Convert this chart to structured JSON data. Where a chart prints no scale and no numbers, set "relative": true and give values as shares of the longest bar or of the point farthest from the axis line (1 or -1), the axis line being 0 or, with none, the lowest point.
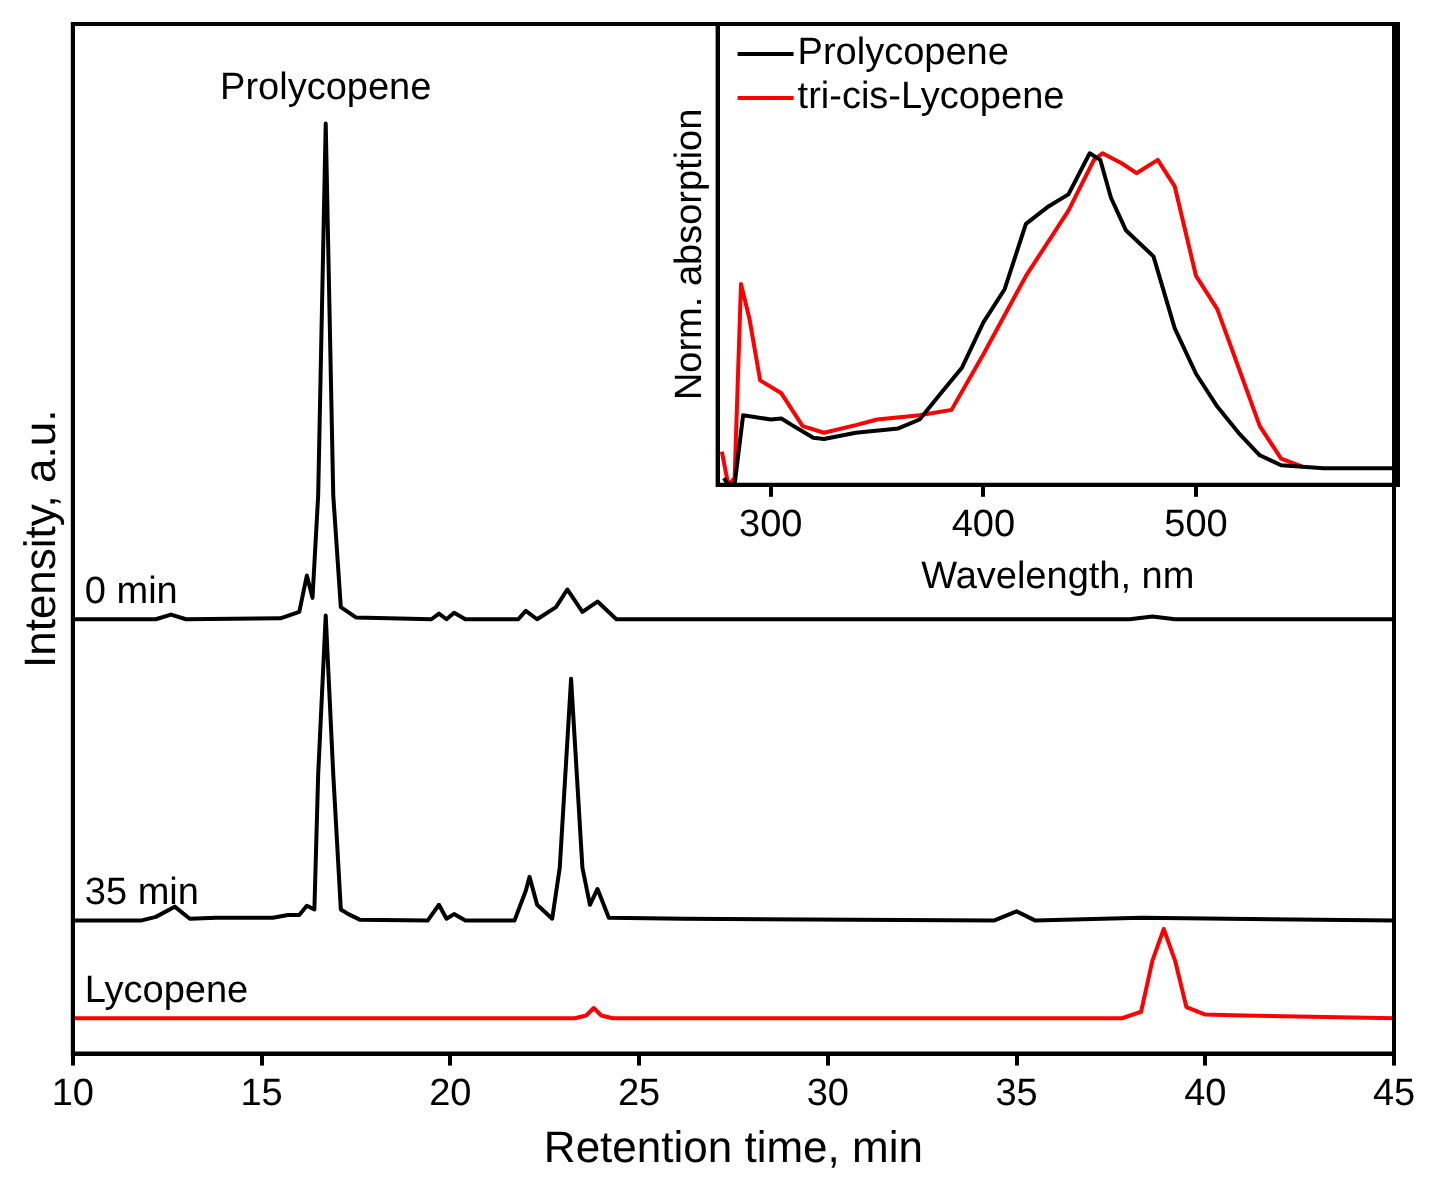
{
  "chart_data": [
    {
      "type": "line",
      "relative": true,
      "xlabel": "Retention time, min",
      "ylabel": "Intensity, a.u.",
      "xlim": [
        10,
        45
      ],
      "xticks": [
        10,
        15,
        20,
        25,
        30,
        35,
        40,
        45
      ],
      "legend": false,
      "marker": "none",
      "line_style": "solid",
      "annotations": [
        {
          "text": "Prolycopene",
          "x": 16.7,
          "y": 1
        }
      ],
      "series": [
        {
          "name": "0 min",
          "color": "#000000",
          "x": [
            10,
            12.2,
            12.6,
            13.0,
            15.5,
            16.0,
            16.2,
            16.35,
            16.5,
            16.7,
            16.9,
            17.1,
            17.5,
            19.5,
            19.7,
            19.9,
            20.1,
            20.4,
            21.8,
            22.0,
            22.3,
            22.8,
            23.1,
            23.5,
            23.9,
            24.4,
            30,
            38,
            38.6,
            39.2,
            45
          ],
          "values": [
            0.467,
            0.467,
            0.472,
            0.467,
            0.468,
            0.475,
            0.514,
            0.49,
            0.6,
            1,
            0.6,
            0.48,
            0.469,
            0.467,
            0.473,
            0.467,
            0.474,
            0.467,
            0.467,
            0.476,
            0.467,
            0.48,
            0.499,
            0.475,
            0.486,
            0.467,
            0.467,
            0.467,
            0.47,
            0.467,
            0.467
          ]
        },
        {
          "name": "35 min",
          "color": "#000000",
          "x": [
            10,
            11.8,
            12.2,
            12.7,
            13.1,
            13.8,
            15.3,
            15.7,
            16.0,
            16.2,
            16.4,
            16.5,
            16.7,
            16.9,
            17.1,
            17.3,
            17.6,
            19.4,
            19.7,
            19.9,
            20.1,
            20.4,
            21.7,
            22.0,
            22.1,
            22.3,
            22.7,
            22.9,
            23.2,
            23.5,
            23.7,
            23.9,
            24.2,
            26.2,
            34.4,
            35.0,
            35.5,
            38.3,
            45
          ],
          "values": [
            0.143,
            0.143,
            0.147,
            0.158,
            0.145,
            0.146,
            0.146,
            0.149,
            0.149,
            0.159,
            0.155,
            0.3,
            0.471,
            0.3,
            0.155,
            0.15,
            0.144,
            0.143,
            0.16,
            0.145,
            0.15,
            0.143,
            0.143,
            0.175,
            0.19,
            0.16,
            0.145,
            0.2,
            0.403,
            0.2,
            0.16,
            0.177,
            0.146,
            0.145,
            0.143,
            0.153,
            0.143,
            0.146,
            0.143
          ]
        },
        {
          "name": "Lycopene",
          "color": "#ff0000",
          "x": [
            10,
            23.3,
            23.6,
            23.8,
            24.0,
            24.3,
            37.8,
            38.3,
            38.6,
            38.9,
            39.2,
            39.5,
            40.0,
            41.0,
            45
          ],
          "values": [
            0.038,
            0.038,
            0.041,
            0.049,
            0.041,
            0.038,
            0.038,
            0.045,
            0.1,
            0.134,
            0.1,
            0.05,
            0.042,
            0.041,
            0.038
          ]
        }
      ]
    },
    {
      "type": "line",
      "relative": true,
      "xlabel": "Wavelength, nm",
      "ylabel": "Norm. absorption",
      "xlim": [
        275,
        595
      ],
      "xticks": [
        300,
        400,
        500
      ],
      "legend": "top left",
      "marker": "none",
      "line_style": "solid",
      "series": [
        {
          "name": "Prolycopene",
          "color": "#000000",
          "x": [
            278,
            280,
            283,
            287,
            300,
            305,
            310,
            320,
            325,
            340,
            360,
            370,
            380,
            390,
            400,
            410,
            420,
            430,
            440,
            450,
            455,
            460,
            467,
            480,
            490,
            500,
            510,
            520,
            530,
            540,
            560,
            595
          ],
          "values": [
            0.02,
            0.0,
            0.0,
            0.21,
            0.197,
            0.2,
            0.18,
            0.142,
            0.138,
            0.157,
            0.17,
            0.197,
            0.276,
            0.354,
            0.49,
            0.59,
            0.787,
            0.837,
            0.876,
            1.0,
            0.98,
            0.866,
            0.768,
            0.689,
            0.472,
            0.335,
            0.236,
            0.157,
            0.089,
            0.059,
            0.05,
            0.05
          ]
        },
        {
          "name": "tri-cis-Lycopene",
          "color": "#ff0000",
          "x": [
            277,
            280,
            283,
            286,
            290,
            295,
            305,
            315,
            325,
            340,
            350,
            370,
            385,
            400,
            420,
            440,
            452,
            456,
            465,
            472,
            482,
            490,
            500,
            510,
            520,
            530,
            540,
            550
          ],
          "values": [
            0.1,
            0.0,
            0.02,
            0.606,
            0.5,
            0.315,
            0.276,
            0.177,
            0.157,
            0.18,
            0.197,
            0.21,
            0.226,
            0.394,
            0.63,
            0.827,
            0.98,
            1.0,
            0.97,
            0.94,
            0.98,
            0.9,
            0.63,
            0.53,
            0.354,
            0.177,
            0.079,
            0.055
          ]
        }
      ]
    }
  ]
}
